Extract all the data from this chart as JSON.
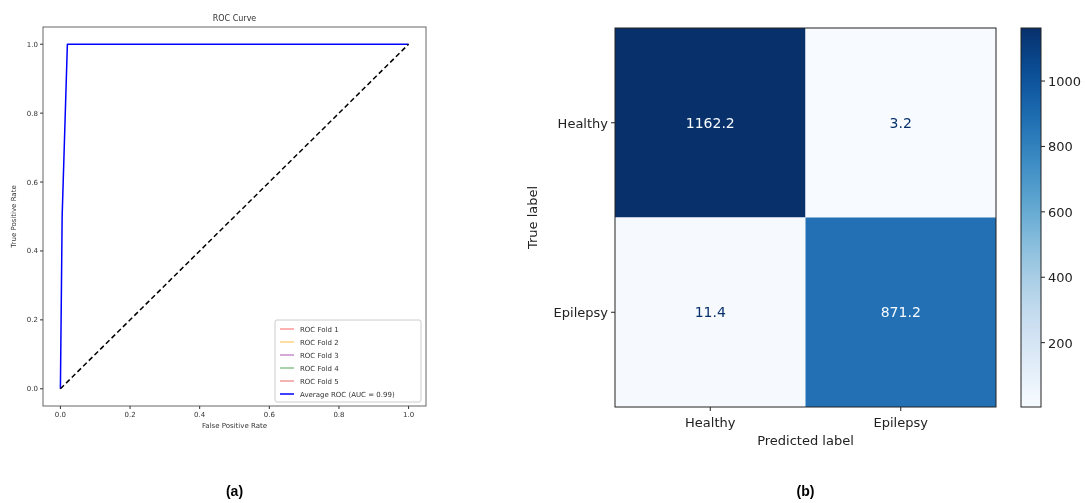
{
  "chart_data": [
    {
      "type": "line",
      "title": "ROC Curve",
      "xlabel": "False Positive Rate",
      "ylabel": "True Positive Rate",
      "xlim": [
        -0.05,
        1.05
      ],
      "ylim": [
        -0.05,
        1.05
      ],
      "xticks": [
        {
          "value": 0,
          "label": "0.0"
        },
        0.2,
        0.4,
        0.6,
        0.8,
        {
          "value": 1,
          "label": "1.0"
        }
      ],
      "yticks": [
        {
          "value": 0,
          "label": "0.0"
        },
        0.2,
        0.4,
        0.6,
        0.8,
        {
          "value": 1,
          "label": "1.0"
        }
      ],
      "grid": false,
      "legend": "bottom right",
      "annotations": [
        "(a)"
      ],
      "series": [
        {
          "name": "ROC Fold 1",
          "color": "#ff9999"
        },
        {
          "name": "ROC Fold 2",
          "color": "#ffd280"
        },
        {
          "name": "ROC Fold 3",
          "color": "#c78cc7"
        },
        {
          "name": "ROC Fold 4",
          "color": "#8cc68c"
        },
        {
          "name": "ROC Fold 5",
          "color": "#f09a9a"
        },
        {
          "name": "Average ROC (AUC = 0.99)",
          "color": "#0000ff",
          "x": [
            0,
            0.005,
            0.02,
            1
          ],
          "values": [
            0,
            0.5,
            1.0,
            1.0
          ]
        },
        {
          "color": "#000000",
          "line_style": "dashed",
          "x": [
            0,
            1
          ],
          "values": [
            0,
            1
          ]
        }
      ]
    },
    {
      "type": "heatmap",
      "xlabel": "Predicted label",
      "ylabel": "True label",
      "categories": [
        "Healthy",
        "Epilepsy"
      ],
      "y_categories": [
        "Healthy",
        "Epilepsy"
      ],
      "cells": [
        [
          1162.2,
          3.2
        ],
        [
          11.4,
          871.2
        ]
      ],
      "data_labels": true,
      "clim": [
        3.2,
        1162.2
      ],
      "cticks": [
        200,
        400,
        600,
        800,
        1000
      ],
      "annotations": [
        "(b)"
      ]
    }
  ]
}
